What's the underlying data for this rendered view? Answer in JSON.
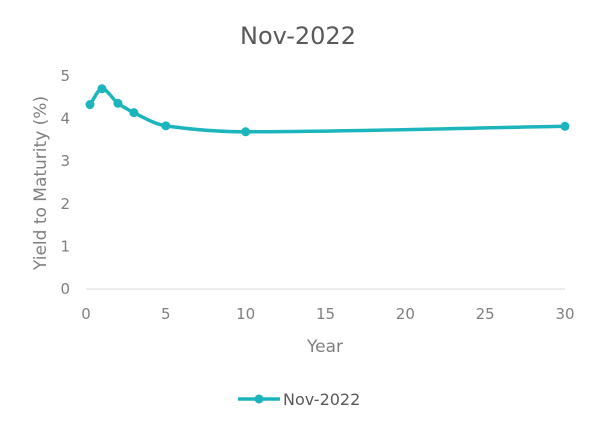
{
  "chart_data": {
    "type": "line",
    "title": "Nov-2022",
    "xlabel": "Year",
    "ylabel": "Yield to Maturity (%)",
    "xlim": [
      0,
      30
    ],
    "ylim": [
      0,
      5
    ],
    "x_ticks": [
      "0",
      "5",
      "10",
      "15",
      "20",
      "25",
      "30"
    ],
    "y_ticks": [
      "0",
      "1",
      "2",
      "3",
      "4",
      "5"
    ],
    "grid": false,
    "legend_position": "bottom",
    "series": [
      {
        "name": "Nov-2022",
        "color": "#1CB5BD",
        "smooth": true,
        "x": [
          0.25,
          1,
          2,
          3,
          5,
          10,
          30
        ],
        "y": [
          4.33,
          4.7,
          4.36,
          4.14,
          3.83,
          3.69,
          3.82
        ]
      }
    ]
  }
}
